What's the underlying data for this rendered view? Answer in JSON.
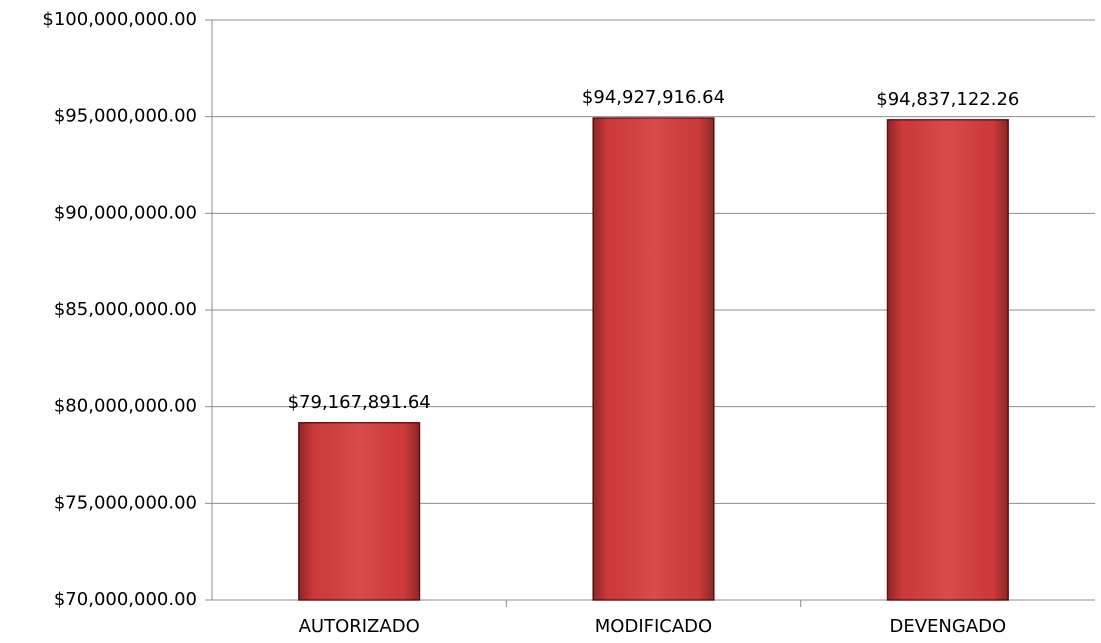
{
  "chart_data": {
    "type": "bar",
    "categories": [
      "AUTORIZADO",
      "MODIFICADO",
      "DEVENGADO"
    ],
    "values": [
      79167891.64,
      94927916.64,
      94837122.26
    ],
    "value_labels": [
      "$79,167,891.64",
      "$94,927,916.64",
      "$94,837,122.26"
    ],
    "color": "#d63c3c",
    "ylim": [
      70000000,
      100000000
    ],
    "yticks": [
      {
        "value": 70000000,
        "label": "$70,000,000.00"
      },
      {
        "value": 75000000,
        "label": "$75,000,000.00"
      },
      {
        "value": 80000000,
        "label": "$80,000,000.00"
      },
      {
        "value": 85000000,
        "label": "$85,000,000.00"
      },
      {
        "value": 90000000,
        "label": "$90,000,000.00"
      },
      {
        "value": 95000000,
        "label": "$95,000,000.00"
      },
      {
        "value": 100000000,
        "label": "$100,000,000.00"
      }
    ],
    "grid": true
  }
}
